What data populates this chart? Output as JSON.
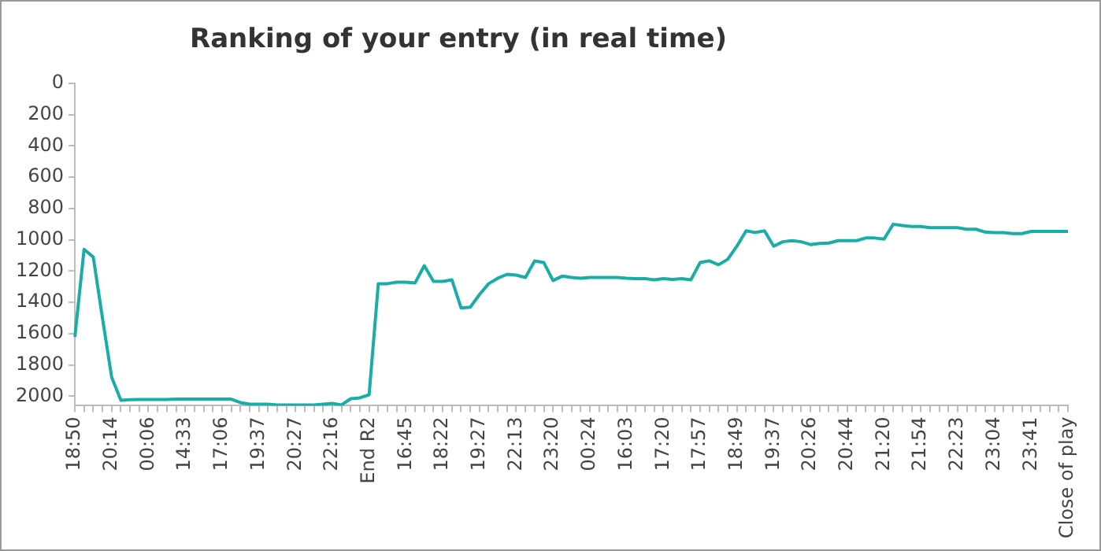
{
  "chart_data": {
    "type": "line",
    "title": "Ranking of your entry (in real time)",
    "categories": [
      "18:50",
      null,
      null,
      null,
      "20:14",
      null,
      null,
      null,
      "00:06",
      null,
      null,
      null,
      "14:33",
      null,
      null,
      null,
      "17:06",
      null,
      null,
      null,
      "19:37",
      null,
      null,
      null,
      "20:27",
      null,
      null,
      null,
      "22:16",
      null,
      null,
      null,
      "End R2",
      null,
      null,
      null,
      "16:45",
      null,
      null,
      null,
      "18:22",
      null,
      null,
      null,
      "19:27",
      null,
      null,
      null,
      "22:13",
      null,
      null,
      null,
      "23:20",
      null,
      null,
      null,
      "00:24",
      null,
      null,
      null,
      "16:03",
      null,
      null,
      null,
      "17:20",
      null,
      null,
      null,
      "17:57",
      null,
      null,
      null,
      "18:49",
      null,
      null,
      null,
      "19:37",
      null,
      null,
      null,
      "20:26",
      null,
      null,
      null,
      "20:44",
      null,
      null,
      null,
      "21:20",
      null,
      null,
      null,
      "21:54",
      null,
      null,
      null,
      "22:23",
      null,
      null,
      null,
      "23:04",
      null,
      null,
      null,
      "23:41",
      null,
      null,
      null,
      "Close of play"
    ],
    "series": [
      {
        "color": "#1aada8",
        "values": [
          1620,
          1060,
          1110,
          1500,
          1878,
          2025,
          2022,
          2020,
          2020,
          2020,
          2020,
          2018,
          2018,
          2018,
          2018,
          2018,
          2018,
          2018,
          2040,
          2050,
          2050,
          2050,
          2055,
          2055,
          2055,
          2055,
          2055,
          2050,
          2045,
          2055,
          2015,
          2010,
          1990,
          1280,
          1280,
          1270,
          1270,
          1275,
          1165,
          1265,
          1265,
          1255,
          1435,
          1430,
          1350,
          1280,
          1245,
          1220,
          1225,
          1240,
          1135,
          1145,
          1260,
          1232,
          1240,
          1245,
          1240,
          1240,
          1240,
          1240,
          1245,
          1248,
          1248,
          1255,
          1248,
          1253,
          1248,
          1255,
          1145,
          1134,
          1159,
          1124,
          1040,
          942,
          953,
          942,
          1040,
          1012,
          1005,
          1012,
          1030,
          1023,
          1020,
          1005,
          1005,
          1005,
          988,
          988,
          995,
          900,
          908,
          915,
          915,
          922,
          922,
          922,
          922,
          932,
          932,
          950,
          953,
          953,
          960,
          960,
          946,
          946,
          946,
          946,
          946
        ]
      }
    ],
    "ylim": [
      2060,
      0
    ],
    "yticks": [
      0,
      200,
      400,
      600,
      800,
      1000,
      1200,
      1400,
      1600,
      1800,
      2000
    ],
    "grid": false,
    "legend": false,
    "marker": "none",
    "line_style": "solid"
  }
}
